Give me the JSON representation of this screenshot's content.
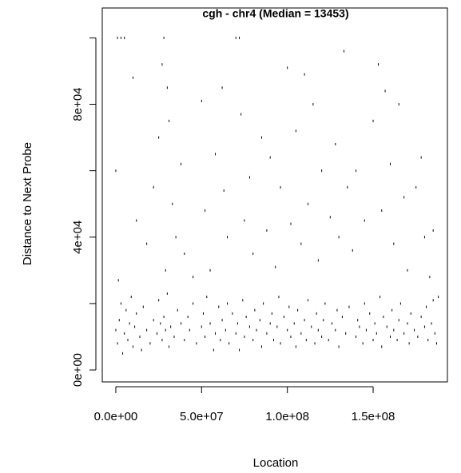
{
  "chart_data": {
    "type": "scatter",
    "title": "cgh - chr4 (Median = 13453)",
    "xlabel": "Location",
    "ylabel": "Distance to Next Probe",
    "color": "#000000",
    "xlim": [
      -7900000.0,
      193300000.0
    ],
    "ylim": [
      -3600,
      109000
    ],
    "xticks": [
      {
        "value": 0,
        "label": "0.0e+00"
      },
      {
        "value": 50000000.0,
        "label": "5.0e+07"
      },
      {
        "value": 100000000.0,
        "label": "1.0e+08"
      },
      {
        "value": 150000000.0,
        "label": "1.5e+08"
      }
    ],
    "yticks": [
      {
        "value": 0,
        "label": "0e+00"
      },
      {
        "value": 20000,
        "label": null
      },
      {
        "value": 40000,
        "label": "4e+04"
      },
      {
        "value": 60000,
        "label": null
      },
      {
        "value": 80000,
        "label": "8e+04"
      },
      {
        "value": 100000,
        "label": null
      }
    ],
    "x": [
      0,
      1000000.0,
      2000000.0,
      3000000.0,
      4000000.0,
      5000000.0,
      6000000.0,
      7000000.0,
      8000000.0,
      9000000.0,
      10000000.0,
      11000000.0,
      12000000.0,
      14000000.0,
      15000000.0,
      16000000.0,
      18000000.0,
      20000000.0,
      22000000.0,
      24000000.0,
      25000000.0,
      26000000.0,
      27000000.0,
      28000000.0,
      29000000.0,
      30000000.0,
      31000000.0,
      32000000.0,
      34000000.0,
      36000000.0,
      38000000.0,
      40000000.0,
      42000000.0,
      43000000.0,
      45000000.0,
      47000000.0,
      50000000.0,
      51000000.0,
      52000000.0,
      53000000.0,
      55000000.0,
      57000000.0,
      58000000.0,
      60000000.0,
      61000000.0,
      62000000.0,
      64000000.0,
      65000000.0,
      66000000.0,
      68000000.0,
      70000000.0,
      71000000.0,
      72000000.0,
      74000000.0,
      75000000.0,
      76000000.0,
      78000000.0,
      80000000.0,
      81000000.0,
      82000000.0,
      84000000.0,
      85000000.0,
      86000000.0,
      88000000.0,
      90000000.0,
      91000000.0,
      92000000.0,
      94000000.0,
      95000000.0,
      96000000.0,
      98000000.0,
      100000000.0,
      101000000.0,
      102000000.0,
      104000000.0,
      105000000.0,
      106000000.0,
      108000000.0,
      110000000.0,
      111000000.0,
      112000000.0,
      114000000.0,
      116000000.0,
      117000000.0,
      118000000.0,
      120000000.0,
      121000000.0,
      122000000.0,
      124000000.0,
      126000000.0,
      128000000.0,
      129000000.0,
      130000000.0,
      132000000.0,
      134000000.0,
      136000000.0,
      140000000.0,
      141000000.0,
      142000000.0,
      144000000.0,
      145000000.0,
      146000000.0,
      148000000.0,
      150000000.0,
      151000000.0,
      152000000.0,
      154000000.0,
      155000000.0,
      156000000.0,
      158000000.0,
      160000000.0,
      161000000.0,
      162000000.0,
      164000000.0,
      165000000.0,
      166000000.0,
      168000000.0,
      170000000.0,
      171000000.0,
      172000000.0,
      174000000.0,
      176000000.0,
      178000000.0,
      180000000.0,
      181000000.0,
      182000000.0,
      184000000.0,
      185000000.0,
      186000000.0,
      187000000.0,
      1000000.0,
      3000000.0,
      5000000.0,
      10000000.0,
      12000000.0,
      18000000.0,
      22000000.0,
      25000000.0,
      27000000.0,
      28000000.0,
      29000000.0,
      30000000.0,
      31000000.0,
      33000000.0,
      35000000.0,
      38000000.0,
      40000000.0,
      45000000.0,
      50000000.0,
      52000000.0,
      55000000.0,
      58000000.0,
      62000000.0,
      63000000.0,
      65000000.0,
      70000000.0,
      72000000.0,
      73000000.0,
      75000000.0,
      78000000.0,
      80000000.0,
      85000000.0,
      88000000.0,
      90000000.0,
      93000000.0,
      96000000.0,
      100000000.0,
      102000000.0,
      105000000.0,
      108000000.0,
      110000000.0,
      112000000.0,
      115000000.0,
      118000000.0,
      120000000.0,
      125000000.0,
      128000000.0,
      130000000.0,
      133000000.0,
      135000000.0,
      138000000.0,
      140000000.0,
      145000000.0,
      150000000.0,
      153000000.0,
      155000000.0,
      157000000.0,
      160000000.0,
      162000000.0,
      165000000.0,
      168000000.0,
      170000000.0,
      175000000.0,
      178000000.0,
      180000000.0,
      183000000.0,
      185000000.0,
      188000000.0,
      0,
      1500000.0
    ],
    "values": [
      12000,
      8000,
      15000,
      20000,
      5000,
      11000,
      18000,
      9000,
      14000,
      22000,
      7000,
      13000,
      17000,
      10000,
      6000,
      19000,
      12000,
      8000,
      15000,
      11000,
      21000,
      14000,
      9000,
      16000,
      12000,
      23000,
      7000,
      13000,
      10000,
      18000,
      14000,
      9000,
      16000,
      12000,
      20000,
      8000,
      13000,
      17000,
      10000,
      22000,
      14000,
      6000,
      11000,
      19000,
      9000,
      15000,
      12000,
      20000,
      8000,
      17000,
      11000,
      14000,
      6000,
      21000,
      10000,
      16000,
      13000,
      9000,
      18000,
      12000,
      15000,
      7000,
      20000,
      11000,
      14000,
      17000,
      9000,
      13000,
      22000,
      8000,
      16000,
      12000,
      19000,
      10000,
      14000,
      7000,
      18000,
      11000,
      15000,
      9000,
      21000,
      13000,
      8000,
      17000,
      12000,
      10000,
      15000,
      20000,
      9000,
      14000,
      12000,
      18000,
      7000,
      16000,
      11000,
      19000,
      10000,
      15000,
      13000,
      8000,
      20000,
      12000,
      17000,
      9000,
      14000,
      11000,
      22000,
      7000,
      16000,
      13000,
      10000,
      18000,
      12000,
      9000,
      15000,
      20000,
      11000,
      14000,
      8000,
      17000,
      12000,
      10000,
      16000,
      13000,
      19000,
      9000,
      14000,
      21000,
      11000,
      8000,
      100000,
      100000,
      100000,
      88000,
      45000,
      38000,
      55000,
      70000,
      92000,
      100000,
      30000,
      85000,
      75000,
      50000,
      40000,
      62000,
      35000,
      28000,
      81000,
      48000,
      30000,
      65000,
      85000,
      54000,
      40000,
      100000,
      100000,
      77000,
      45000,
      58000,
      35000,
      70000,
      42000,
      64000,
      31000,
      55000,
      91000,
      44000,
      72000,
      38000,
      89000,
      50000,
      80000,
      33000,
      60000,
      46000,
      68000,
      40000,
      96000,
      55000,
      36000,
      60000,
      45000,
      75000,
      92000,
      48000,
      84000,
      62000,
      38000,
      80000,
      52000,
      30000,
      55000,
      64000,
      40000,
      28000,
      42000,
      22000,
      60000,
      27000
    ]
  }
}
